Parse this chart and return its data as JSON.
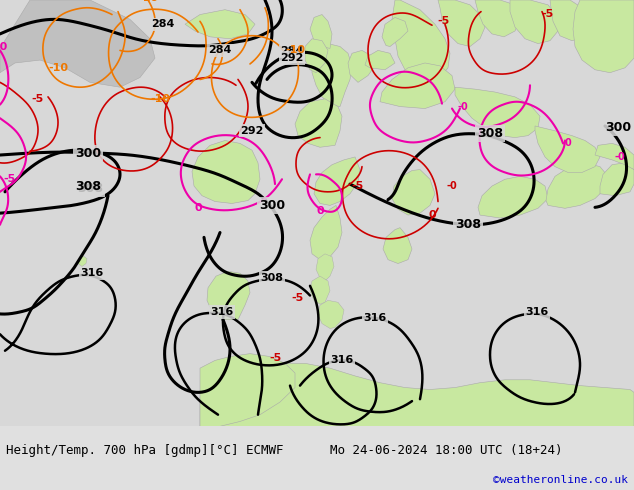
{
  "title_left": "Height/Temp. 700 hPa [gdmp][°C] ECMWF",
  "title_right": "Mo 24-06-2024 18:00 UTC (18+24)",
  "credit": "©weatheronline.co.uk",
  "bg_color": "#e0e0e0",
  "sea_color": "#d8d8d8",
  "land_color": "#c8e8a0",
  "land_border": "#aaaaaa",
  "credit_color": "#0000cc",
  "title_color": "#000000",
  "figsize": [
    6.34,
    4.9
  ],
  "dpi": 100
}
